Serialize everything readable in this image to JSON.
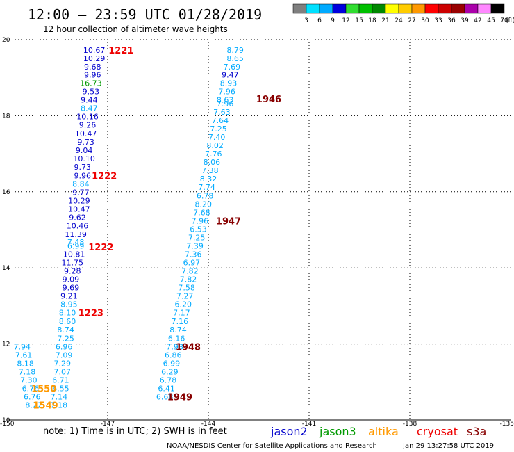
{
  "header": {
    "title": "12:00 – 23:59 UTC 01/28/2019",
    "subtitle": "12 hour collection of altimeter wave heights"
  },
  "colorbar": {
    "labels": [
      "3",
      "6",
      "9",
      "12",
      "15",
      "18",
      "21",
      "24",
      "27",
      "30",
      "33",
      "36",
      "39",
      "42",
      "45",
      "70"
    ],
    "unit": "(ft)",
    "colors": [
      "#7f7f7f",
      "#00e0ff",
      "#00aaff",
      "#0000dd",
      "#30dd30",
      "#00c000",
      "#008800",
      "#ffff00",
      "#ffcc00",
      "#ff9900",
      "#ff0000",
      "#cc0000",
      "#990000",
      "#aa00aa",
      "#ff88ff",
      "#000000"
    ]
  },
  "footer": {
    "note": "note: 1) Time is in UTC; 2) SWH is in feet",
    "credit": "NOAA/NESDIS Center for Satellite Applications and Research",
    "timestamp": "Jan 29 13:27:58 UTC 2019",
    "satellites": [
      {
        "name": "jason2",
        "color": "#0000cc"
      },
      {
        "name": "jason3",
        "color": "#009900"
      },
      {
        "name": "altika",
        "color": "#ff9900"
      },
      {
        "name": "cryosat",
        "color": "#ee0000"
      },
      {
        "name": "s3a",
        "color": "#880000"
      }
    ]
  },
  "chart_data": {
    "type": "scatter",
    "title": "12:00 – 23:59 UTC 01/28/2019",
    "xlim": [
      -150,
      -135
    ],
    "ylim": [
      10,
      20
    ],
    "xticks": [
      "-150",
      "-147",
      "-144",
      "-141",
      "-138",
      "-135"
    ],
    "yticks": [
      "20",
      "18",
      "16",
      "14",
      "12",
      "10"
    ],
    "grid": true,
    "tracks": [
      {
        "name": "jason2-1221-1222-1223",
        "points": [
          {
            "x": -147.4,
            "y": 19.73,
            "v": "10.67",
            "c": "#0000cc"
          },
          {
            "x": -147.4,
            "y": 19.51,
            "v": "10.29",
            "c": "#0000cc"
          },
          {
            "x": -147.45,
            "y": 19.29,
            "v": "9.68",
            "c": "#0000cc"
          },
          {
            "x": -147.45,
            "y": 19.08,
            "v": "9.96",
            "c": "#0000cc"
          },
          {
            "x": -147.5,
            "y": 18.86,
            "v": "16.73",
            "c": "#009900"
          },
          {
            "x": -147.5,
            "y": 18.64,
            "v": "9.53",
            "c": "#0000cc"
          },
          {
            "x": -147.55,
            "y": 18.42,
            "v": "9.44",
            "c": "#0000cc"
          },
          {
            "x": -147.55,
            "y": 18.2,
            "v": "8.47",
            "c": "#00aaff"
          },
          {
            "x": -147.6,
            "y": 17.98,
            "v": "10.16",
            "c": "#0000cc"
          },
          {
            "x": -147.6,
            "y": 17.76,
            "v": "9.26",
            "c": "#0000cc"
          },
          {
            "x": -147.65,
            "y": 17.53,
            "v": "10.47",
            "c": "#0000cc"
          },
          {
            "x": -147.65,
            "y": 17.31,
            "v": "9.73",
            "c": "#0000cc"
          },
          {
            "x": -147.7,
            "y": 17.09,
            "v": "9.04",
            "c": "#0000cc"
          },
          {
            "x": -147.7,
            "y": 16.87,
            "v": "10.10",
            "c": "#0000cc"
          },
          {
            "x": -147.75,
            "y": 16.65,
            "v": "9.73",
            "c": "#0000cc"
          },
          {
            "x": -147.75,
            "y": 16.43,
            "v": "9.96",
            "c": "#0000cc"
          },
          {
            "x": -147.8,
            "y": 16.21,
            "v": "8.84",
            "c": "#00aaff"
          },
          {
            "x": -147.8,
            "y": 15.99,
            "v": "9.77",
            "c": "#0000cc"
          },
          {
            "x": -147.85,
            "y": 15.77,
            "v": "10.29",
            "c": "#0000cc"
          },
          {
            "x": -147.85,
            "y": 15.55,
            "v": "10.47",
            "c": "#0000cc"
          },
          {
            "x": -147.9,
            "y": 15.33,
            "v": "9.62",
            "c": "#0000cc"
          },
          {
            "x": -147.9,
            "y": 15.11,
            "v": "10.46",
            "c": "#0000cc"
          },
          {
            "x": -147.95,
            "y": 14.88,
            "v": "11.39",
            "c": "#0000cc"
          },
          {
            "x": -147.95,
            "y": 14.68,
            "v": "7.48",
            "c": "#00aaff"
          },
          {
            "x": -147.95,
            "y": 14.58,
            "v": "6.99",
            "c": "#00aaff"
          },
          {
            "x": -148.0,
            "y": 14.36,
            "v": "10.81",
            "c": "#0000cc"
          },
          {
            "x": -148.05,
            "y": 14.14,
            "v": "11.75",
            "c": "#0000cc"
          },
          {
            "x": -148.05,
            "y": 13.92,
            "v": "9.28",
            "c": "#0000cc"
          },
          {
            "x": -148.1,
            "y": 13.7,
            "v": "9.09",
            "c": "#0000cc"
          },
          {
            "x": -148.1,
            "y": 13.48,
            "v": "9.69",
            "c": "#0000cc"
          },
          {
            "x": -148.15,
            "y": 13.26,
            "v": "9.21",
            "c": "#0000cc"
          },
          {
            "x": -148.15,
            "y": 13.04,
            "v": "8.95",
            "c": "#00aaff"
          },
          {
            "x": -148.2,
            "y": 12.82,
            "v": "8.10",
            "c": "#00aaff"
          },
          {
            "x": -148.2,
            "y": 12.6,
            "v": "8.60",
            "c": "#00aaff"
          },
          {
            "x": -148.25,
            "y": 12.38,
            "v": "8.74",
            "c": "#00aaff"
          },
          {
            "x": -148.25,
            "y": 12.15,
            "v": "7.25",
            "c": "#00aaff"
          },
          {
            "x": -148.3,
            "y": 11.93,
            "v": "6.96",
            "c": "#00aaff"
          },
          {
            "x": -148.3,
            "y": 11.71,
            "v": "7.09",
            "c": "#00aaff"
          },
          {
            "x": -148.35,
            "y": 11.49,
            "v": "7.29",
            "c": "#00aaff"
          },
          {
            "x": -148.35,
            "y": 11.27,
            "v": "7.07",
            "c": "#00aaff"
          },
          {
            "x": -148.4,
            "y": 11.05,
            "v": "6.71",
            "c": "#00aaff"
          },
          {
            "x": -148.4,
            "y": 10.83,
            "v": "6.55",
            "c": "#00aaff"
          },
          {
            "x": -148.45,
            "y": 10.61,
            "v": "7.14",
            "c": "#00aaff"
          },
          {
            "x": -148.45,
            "y": 10.39,
            "v": "7.18",
            "c": "#00aaff"
          }
        ]
      },
      {
        "name": "s3a-1946-1949",
        "points": [
          {
            "x": -143.2,
            "y": 19.73,
            "v": "8.79",
            "c": "#00aaff"
          },
          {
            "x": -143.2,
            "y": 19.51,
            "v": "8.65",
            "c": "#00aaff"
          },
          {
            "x": -143.3,
            "y": 19.29,
            "v": "7.69",
            "c": "#00aaff"
          },
          {
            "x": -143.35,
            "y": 19.08,
            "v": "9.47",
            "c": "#0000cc"
          },
          {
            "x": -143.4,
            "y": 18.86,
            "v": "8.93",
            "c": "#00aaff"
          },
          {
            "x": -143.45,
            "y": 18.64,
            "v": "7.96",
            "c": "#00aaff"
          },
          {
            "x": -143.5,
            "y": 18.42,
            "v": "8.63",
            "c": "#00aaff"
          },
          {
            "x": -143.5,
            "y": 18.32,
            "v": "7.96",
            "c": "#00aaff"
          },
          {
            "x": -143.6,
            "y": 18.1,
            "v": "7.63",
            "c": "#00aaff"
          },
          {
            "x": -143.65,
            "y": 17.88,
            "v": "7.64",
            "c": "#00aaff"
          },
          {
            "x": -143.7,
            "y": 17.66,
            "v": "7.25",
            "c": "#00aaff"
          },
          {
            "x": -143.75,
            "y": 17.44,
            "v": "7.40",
            "c": "#00aaff"
          },
          {
            "x": -143.8,
            "y": 17.22,
            "v": "8.02",
            "c": "#00aaff"
          },
          {
            "x": -143.85,
            "y": 17.0,
            "v": "7.76",
            "c": "#00aaff"
          },
          {
            "x": -143.9,
            "y": 16.78,
            "v": "8.06",
            "c": "#00aaff"
          },
          {
            "x": -143.95,
            "y": 16.56,
            "v": "7.38",
            "c": "#00aaff"
          },
          {
            "x": -144.0,
            "y": 16.34,
            "v": "8.32",
            "c": "#00aaff"
          },
          {
            "x": -144.05,
            "y": 16.12,
            "v": "7.74",
            "c": "#00aaff"
          },
          {
            "x": -144.1,
            "y": 15.9,
            "v": "6.78",
            "c": "#00aaff"
          },
          {
            "x": -144.15,
            "y": 15.68,
            "v": "8.20",
            "c": "#00aaff"
          },
          {
            "x": -144.2,
            "y": 15.46,
            "v": "7.68",
            "c": "#00aaff"
          },
          {
            "x": -144.25,
            "y": 15.24,
            "v": "7.96",
            "c": "#00aaff"
          },
          {
            "x": -144.3,
            "y": 15.02,
            "v": "6.53",
            "c": "#00aaff"
          },
          {
            "x": -144.35,
            "y": 14.8,
            "v": "7.25",
            "c": "#00aaff"
          },
          {
            "x": -144.4,
            "y": 14.58,
            "v": "7.39",
            "c": "#00aaff"
          },
          {
            "x": -144.45,
            "y": 14.36,
            "v": "7.36",
            "c": "#00aaff"
          },
          {
            "x": -144.5,
            "y": 14.14,
            "v": "6.97",
            "c": "#00aaff"
          },
          {
            "x": -144.55,
            "y": 13.92,
            "v": "7.82",
            "c": "#00aaff"
          },
          {
            "x": -144.6,
            "y": 13.7,
            "v": "7.82",
            "c": "#00aaff"
          },
          {
            "x": -144.65,
            "y": 13.48,
            "v": "7.58",
            "c": "#00aaff"
          },
          {
            "x": -144.7,
            "y": 13.26,
            "v": "7.27",
            "c": "#00aaff"
          },
          {
            "x": -144.75,
            "y": 13.04,
            "v": "6.20",
            "c": "#00aaff"
          },
          {
            "x": -144.8,
            "y": 12.82,
            "v": "7.17",
            "c": "#00aaff"
          },
          {
            "x": -144.85,
            "y": 12.6,
            "v": "7.16",
            "c": "#00aaff"
          },
          {
            "x": -144.9,
            "y": 12.38,
            "v": "8.74",
            "c": "#00aaff"
          },
          {
            "x": -144.95,
            "y": 12.15,
            "v": "6.16",
            "c": "#00aaff"
          },
          {
            "x": -145.0,
            "y": 11.93,
            "v": "7.98",
            "c": "#00aaff"
          },
          {
            "x": -145.05,
            "y": 11.71,
            "v": "6.86",
            "c": "#00aaff"
          },
          {
            "x": -145.1,
            "y": 11.49,
            "v": "6.99",
            "c": "#00aaff"
          },
          {
            "x": -145.15,
            "y": 11.27,
            "v": "6.29",
            "c": "#00aaff"
          },
          {
            "x": -145.2,
            "y": 11.05,
            "v": "6.78",
            "c": "#00aaff"
          },
          {
            "x": -145.25,
            "y": 10.83,
            "v": "6.41",
            "c": "#00aaff"
          },
          {
            "x": -145.3,
            "y": 10.61,
            "v": "6.68",
            "c": "#00aaff"
          }
        ]
      },
      {
        "name": "altika-1549-1550",
        "points": [
          {
            "x": -149.55,
            "y": 11.93,
            "v": "7.94",
            "c": "#00aaff"
          },
          {
            "x": -149.5,
            "y": 11.71,
            "v": "7.61",
            "c": "#00aaff"
          },
          {
            "x": -149.45,
            "y": 11.49,
            "v": "8.18",
            "c": "#00aaff"
          },
          {
            "x": -149.4,
            "y": 11.27,
            "v": "7.18",
            "c": "#00aaff"
          },
          {
            "x": -149.35,
            "y": 11.05,
            "v": "7.30",
            "c": "#00aaff"
          },
          {
            "x": -149.3,
            "y": 10.83,
            "v": "6.76",
            "c": "#00aaff"
          },
          {
            "x": -149.25,
            "y": 10.61,
            "v": "6.76",
            "c": "#00aaff"
          },
          {
            "x": -149.2,
            "y": 10.39,
            "v": "8.22",
            "c": "#00aaff"
          }
        ]
      }
    ],
    "pass_labels": [
      {
        "text": "1221",
        "x": -146.6,
        "y": 19.73,
        "c": "#ee0000"
      },
      {
        "text": "1222",
        "x": -147.1,
        "y": 16.43,
        "c": "#ee0000"
      },
      {
        "text": "1222",
        "x": -147.2,
        "y": 14.55,
        "c": "#ee0000"
      },
      {
        "text": "1223",
        "x": -147.5,
        "y": 12.82,
        "c": "#ee0000"
      },
      {
        "text": "1946",
        "x": -142.2,
        "y": 18.45,
        "c": "#880000"
      },
      {
        "text": "1947",
        "x": -143.4,
        "y": 15.24,
        "c": "#880000"
      },
      {
        "text": "1948",
        "x": -144.6,
        "y": 11.93,
        "c": "#880000"
      },
      {
        "text": "1949",
        "x": -144.85,
        "y": 10.61,
        "c": "#880000"
      },
      {
        "text": "1550",
        "x": -148.9,
        "y": 10.83,
        "c": "#ff9900"
      },
      {
        "text": "1549",
        "x": -148.85,
        "y": 10.39,
        "c": "#ff9900"
      }
    ]
  }
}
